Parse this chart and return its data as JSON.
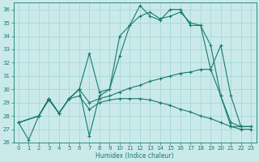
{
  "xlabel": "Humidex (Indice chaleur)",
  "bg_color": "#caeaea",
  "grid_color": "#a8d8d8",
  "line_color": "#1a7a6e",
  "xlim": [
    -0.5,
    23.5
  ],
  "ylim": [
    26,
    36.5
  ],
  "xticks": [
    0,
    1,
    2,
    3,
    4,
    5,
    6,
    7,
    8,
    9,
    10,
    11,
    12,
    13,
    14,
    15,
    16,
    17,
    18,
    19,
    20,
    21,
    22,
    23
  ],
  "yticks": [
    26,
    27,
    28,
    29,
    30,
    31,
    32,
    33,
    34,
    35,
    36
  ],
  "series": [
    {
      "x": [
        0,
        1,
        2,
        3,
        4,
        5,
        6,
        7,
        8,
        9,
        10,
        11,
        12,
        13,
        14,
        15,
        16,
        17,
        18,
        19,
        20,
        21,
        22
      ],
      "y": [
        27.5,
        26.2,
        28.0,
        29.2,
        28.2,
        29.3,
        30.0,
        26.5,
        29.5,
        30.0,
        34.0,
        34.8,
        36.3,
        35.5,
        35.2,
        36.0,
        36.0,
        34.8,
        34.8,
        33.3,
        29.5,
        27.5,
        27.2
      ]
    },
    {
      "x": [
        0,
        2,
        3,
        4,
        5,
        6,
        7,
        8,
        9,
        10,
        11,
        12,
        13,
        14,
        15,
        16,
        17,
        18,
        19,
        20,
        21,
        22,
        23
      ],
      "y": [
        27.5,
        28.0,
        29.3,
        28.2,
        29.3,
        30.0,
        32.7,
        29.8,
        30.0,
        32.5,
        34.8,
        35.5,
        35.8,
        35.3,
        35.5,
        35.8,
        35.0,
        34.8,
        31.5,
        33.3,
        29.5,
        27.2,
        27.2
      ]
    },
    {
      "x": [
        0,
        2,
        3,
        4,
        5,
        6,
        7,
        8,
        9,
        10,
        11,
        12,
        13,
        14,
        15,
        16,
        17,
        18,
        19,
        20,
        21,
        22,
        23
      ],
      "y": [
        27.5,
        28.0,
        29.3,
        28.2,
        29.3,
        30.0,
        29.0,
        29.3,
        29.5,
        29.8,
        30.1,
        30.3,
        30.6,
        30.8,
        31.0,
        31.2,
        31.3,
        31.5,
        31.5,
        29.5,
        27.2,
        27.2,
        27.2
      ]
    },
    {
      "x": [
        0,
        2,
        3,
        4,
        5,
        6,
        7,
        8,
        9,
        10,
        11,
        12,
        13,
        14,
        15,
        16,
        17,
        18,
        19,
        20,
        21,
        22,
        23
      ],
      "y": [
        27.5,
        28.0,
        29.3,
        28.2,
        29.3,
        29.5,
        28.5,
        29.0,
        29.2,
        29.3,
        29.3,
        29.3,
        29.2,
        29.0,
        28.8,
        28.5,
        28.3,
        28.0,
        27.8,
        27.5,
        27.2,
        27.0,
        27.0
      ]
    }
  ]
}
